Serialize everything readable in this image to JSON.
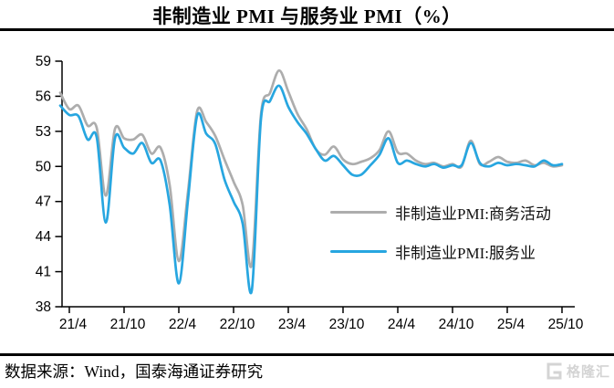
{
  "title": "非制造业 PMI 与服务业 PMI（%）",
  "source": "数据来源：Wind，国泰海通证券研究",
  "watermark": "格隆汇",
  "colors": {
    "business": "#ADADAD",
    "services": "#27A6E0",
    "axis": "#000000",
    "watermark_gray": "#d4d4d4"
  },
  "chart_data": {
    "type": "line",
    "title": "非制造业 PMI 与服务业 PMI（%）",
    "xlabel": "",
    "ylabel": "",
    "ylim": [
      38,
      59
    ],
    "yticks": [
      38,
      41,
      44,
      47,
      50,
      53,
      56,
      59
    ],
    "x_tick_labels": [
      "21/4",
      "21/10",
      "22/4",
      "22/10",
      "23/4",
      "23/10",
      "24/4",
      "24/10",
      "25/4",
      "25/10"
    ],
    "grid": false,
    "legend_position": "inside-right",
    "months": [
      "2021-03",
      "2021-04",
      "2021-05",
      "2021-06",
      "2021-07",
      "2021-08",
      "2021-09",
      "2021-10",
      "2021-11",
      "2021-12",
      "2022-01",
      "2022-02",
      "2022-03",
      "2022-04",
      "2022-05",
      "2022-06",
      "2022-07",
      "2022-08",
      "2022-09",
      "2022-10",
      "2022-11",
      "2022-12",
      "2023-01",
      "2023-02",
      "2023-03",
      "2023-04",
      "2023-05",
      "2023-06",
      "2023-07",
      "2023-08",
      "2023-09",
      "2023-10",
      "2023-11",
      "2023-12",
      "2024-01",
      "2024-02",
      "2024-03",
      "2024-04",
      "2024-05",
      "2024-06",
      "2024-07",
      "2024-08",
      "2024-09",
      "2024-10",
      "2024-11",
      "2024-12",
      "2025-01",
      "2025-02",
      "2025-03",
      "2025-04",
      "2025-05",
      "2025-06",
      "2025-07",
      "2025-08",
      "2025-09",
      "2025-10"
    ],
    "series": [
      {
        "name": "非制造业PMI:商务活动",
        "color": "#ADADAD",
        "values": [
          56.3,
          54.9,
          55.2,
          53.5,
          53.3,
          47.5,
          53.2,
          52.4,
          52.3,
          52.7,
          51.1,
          51.6,
          48.4,
          41.9,
          47.8,
          54.7,
          53.8,
          52.6,
          50.6,
          48.7,
          46.7,
          41.6,
          54.4,
          56.3,
          58.2,
          56.4,
          54.5,
          53.2,
          51.5,
          51.0,
          51.7,
          50.6,
          50.2,
          50.4,
          50.7,
          51.4,
          53.0,
          51.2,
          51.1,
          50.5,
          50.2,
          50.3,
          50.0,
          50.2,
          50.0,
          52.2,
          50.2,
          50.4,
          50.8,
          50.4,
          50.3,
          50.5,
          50.1,
          50.3,
          50.0,
          50.1
        ]
      },
      {
        "name": "非制造业PMI:服务业",
        "color": "#27A6E0",
        "values": [
          55.2,
          54.4,
          54.3,
          52.3,
          52.5,
          45.2,
          52.4,
          51.6,
          51.1,
          52.0,
          50.3,
          50.5,
          46.7,
          40.0,
          47.1,
          54.3,
          52.8,
          51.9,
          48.9,
          47.0,
          45.1,
          39.4,
          54.0,
          55.6,
          56.9,
          55.1,
          53.8,
          52.8,
          51.5,
          50.5,
          50.9,
          50.1,
          49.3,
          49.3,
          50.1,
          51.0,
          52.4,
          50.3,
          50.5,
          50.2,
          50.0,
          50.2,
          49.9,
          50.1,
          50.1,
          52.0,
          50.3,
          50.0,
          50.3,
          50.1,
          50.2,
          50.1,
          50.0,
          50.5,
          50.1,
          50.2
        ]
      }
    ]
  }
}
